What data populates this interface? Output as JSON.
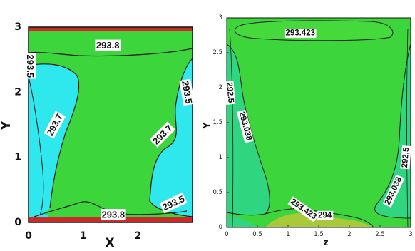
{
  "colors": {
    "green": "#3cd63c",
    "cyan": "#2ee8ee",
    "light_green": "#2fd67f",
    "yellow_green": "#a7c93a",
    "red_boundary": "#cc2a2a",
    "contour_line": "#1a1a1a"
  },
  "chart_data": [
    {
      "type": "contour",
      "panel": "left",
      "xlabel": "X",
      "ylabel": "Y",
      "xlim": [
        0,
        3
      ],
      "ylim": [
        0,
        3
      ],
      "xticks": [
        "0",
        "1",
        "2"
      ],
      "yticks": [
        "0",
        "1",
        "2",
        "3"
      ],
      "contour_labels": [
        {
          "text": "293.8",
          "x": 1.45,
          "y": 2.72,
          "angle": 0
        },
        {
          "text": "293.5",
          "x": 0.03,
          "y": 2.4,
          "angle": 90
        },
        {
          "text": "293.7",
          "x": 0.48,
          "y": 1.5,
          "angle": -62
        },
        {
          "text": "293.5",
          "x": 2.9,
          "y": 2.0,
          "angle": 80
        },
        {
          "text": "293.7",
          "x": 2.45,
          "y": 1.35,
          "angle": -45
        },
        {
          "text": "293.5",
          "x": 2.65,
          "y": 0.3,
          "angle": -25
        },
        {
          "text": "293.8",
          "x": 1.55,
          "y": 0.12,
          "angle": 0
        }
      ]
    },
    {
      "type": "contour",
      "panel": "right",
      "xlabel": "z",
      "ylabel": "Y",
      "xlim": [
        0,
        3
      ],
      "ylim": [
        0,
        3
      ],
      "xticks": [
        "0",
        "0.5",
        "1",
        "1.5",
        "2",
        "2.5",
        "3"
      ],
      "yticks": [
        "0",
        "0.5",
        "1",
        "1.5",
        "2",
        "2.5",
        "3"
      ],
      "contour_labels": [
        {
          "text": "293.423",
          "x": 1.2,
          "y": 2.78,
          "angle": 0
        },
        {
          "text": "292.5",
          "x": 0.05,
          "y": 1.93,
          "angle": 85
        },
        {
          "text": "293.038",
          "x": 0.3,
          "y": 1.45,
          "angle": 75
        },
        {
          "text": "292.5",
          "x": 2.92,
          "y": 1.0,
          "angle": -85
        },
        {
          "text": "293.038",
          "x": 2.72,
          "y": 0.52,
          "angle": -65
        },
        {
          "text": "293.423",
          "x": 1.25,
          "y": 0.26,
          "angle": 35
        },
        {
          "text": "294",
          "x": 1.6,
          "y": 0.17,
          "angle": 0
        }
      ]
    }
  ]
}
